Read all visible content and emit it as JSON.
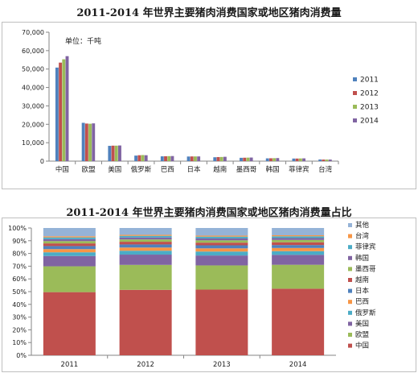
{
  "chart_data": [
    {
      "type": "bar",
      "title": "2011-2014 年世界主要猪肉消费国家或地区猪肉消费量",
      "unit_note": "单位：千吨",
      "categories": [
        "中国",
        "欧盟",
        "美国",
        "俄罗斯",
        "巴西",
        "日本",
        "越南",
        "墨西哥",
        "韩国",
        "菲律宾",
        "台湾"
      ],
      "series": [
        {
          "name": "2011",
          "color": "#4f81bd",
          "values": [
            50800,
            20800,
            8300,
            3000,
            2600,
            2500,
            2100,
            1800,
            1500,
            1400,
            900
          ]
        },
        {
          "name": "2012",
          "color": "#c0504d",
          "values": [
            53500,
            20400,
            8400,
            3200,
            2650,
            2550,
            2200,
            1850,
            1550,
            1400,
            850
          ]
        },
        {
          "name": "2013",
          "color": "#9bbb59",
          "values": [
            55300,
            20300,
            8400,
            3300,
            2700,
            2550,
            2250,
            1900,
            1600,
            1450,
            850
          ]
        },
        {
          "name": "2014",
          "color": "#8064a2",
          "values": [
            57000,
            20500,
            8500,
            3200,
            2750,
            2550,
            2350,
            1950,
            1650,
            1500,
            850
          ]
        }
      ],
      "ylim": [
        0,
        70000
      ],
      "yticks": [
        "0",
        "10,000",
        "20,000",
        "30,000",
        "40,000",
        "50,000",
        "60,000",
        "70,000"
      ],
      "legend": "right"
    },
    {
      "type": "bar",
      "stacked": "percent",
      "title": "2011-2014 年世界主要猪肉消费国家或地区猪肉消费量占比",
      "categories": [
        "2011",
        "2012",
        "2013",
        "2014"
      ],
      "series": [
        {
          "name": "中国",
          "color": "#c0504d",
          "values": [
            49.6,
            50.9,
            51.6,
            52.3
          ]
        },
        {
          "name": "欧盟",
          "color": "#9bbb59",
          "values": [
            20.3,
            19.4,
            19.0,
            18.8
          ]
        },
        {
          "name": "美国",
          "color": "#8064a2",
          "values": [
            8.1,
            8.0,
            7.8,
            7.8
          ]
        },
        {
          "name": "俄罗斯",
          "color": "#4bacc6",
          "values": [
            2.9,
            3.0,
            3.1,
            2.9
          ]
        },
        {
          "name": "巴西",
          "color": "#f79646",
          "values": [
            2.5,
            2.5,
            2.5,
            2.5
          ]
        },
        {
          "name": "日本",
          "color": "#4f81bd",
          "values": [
            2.4,
            2.4,
            2.4,
            2.3
          ]
        },
        {
          "name": "越南",
          "color": "#c0504d",
          "values": [
            2.1,
            2.1,
            2.1,
            2.2
          ]
        },
        {
          "name": "墨西哥",
          "color": "#9bbb59",
          "values": [
            1.8,
            1.8,
            1.8,
            1.8
          ]
        },
        {
          "name": "韩国",
          "color": "#8064a2",
          "values": [
            1.5,
            1.5,
            1.5,
            1.5
          ]
        },
        {
          "name": "菲律宾",
          "color": "#4bacc6",
          "values": [
            1.4,
            1.3,
            1.4,
            1.4
          ]
        },
        {
          "name": "台湾",
          "color": "#f79646",
          "values": [
            0.9,
            0.8,
            0.8,
            0.8
          ]
        },
        {
          "name": "其他",
          "color": "#95b3d7",
          "values": [
            6.5,
            5.3,
            6.0,
            5.7
          ]
        }
      ],
      "ylim": [
        0,
        100
      ],
      "yticks": [
        "0%",
        "10%",
        "20%",
        "30%",
        "40%",
        "50%",
        "60%",
        "70%",
        "80%",
        "90%",
        "100%"
      ],
      "legend": "right"
    }
  ]
}
